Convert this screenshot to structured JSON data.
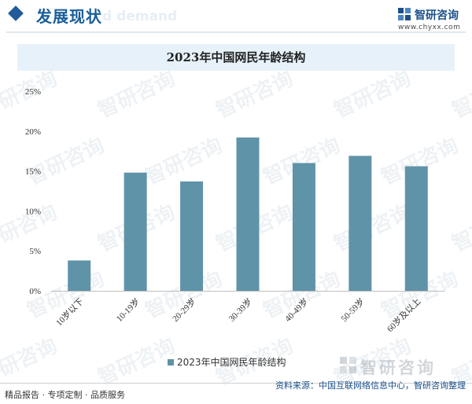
{
  "header": {
    "section_title": "发展现状",
    "section_subtitle": "d demand"
  },
  "brand": {
    "name": "智研咨询",
    "url": "www.chyxx.com"
  },
  "chart_data": {
    "type": "bar",
    "title": "2023年中国网民年龄结构",
    "categories": [
      "10岁以下",
      "10-19岁",
      "20-29岁",
      "30-39岁",
      "40-49岁",
      "50-59岁",
      "60岁及以上"
    ],
    "series": [
      {
        "name": "2023年中国网民年龄结构",
        "values": [
          3.8,
          14.8,
          13.7,
          19.2,
          16.0,
          16.9,
          15.6
        ]
      }
    ],
    "yticks": [
      "0%",
      "5%",
      "10%",
      "15%",
      "20%",
      "25%"
    ],
    "ylim": [
      0,
      25
    ],
    "grid": false,
    "legend": "bottom",
    "bar_color": "#5f93a8"
  },
  "footer": {
    "left": "精品报告 · 专项定制 · 品质服务",
    "source": "资料来源：中国互联网络信息中心，智研咨询整理"
  },
  "watermark": {
    "text": "智研咨询"
  }
}
